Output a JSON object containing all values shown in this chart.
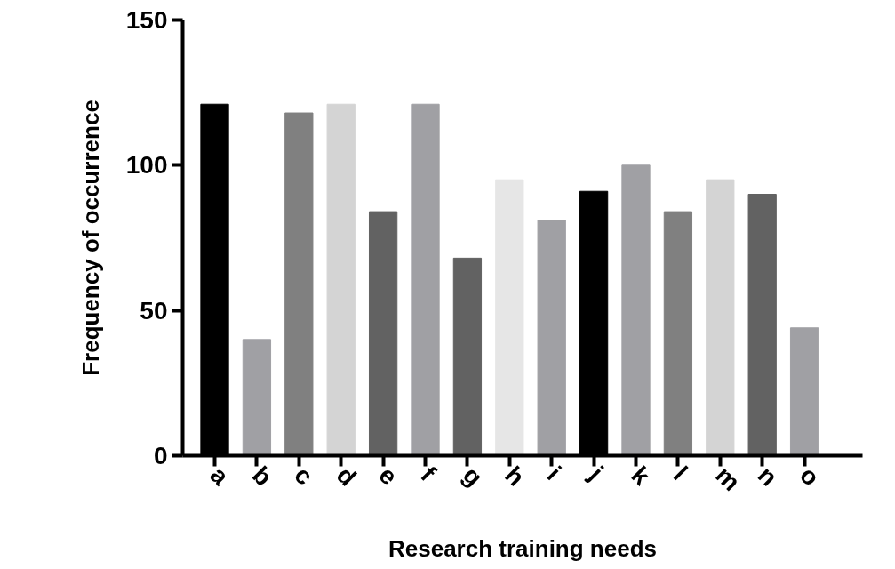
{
  "chart_data": {
    "type": "bar",
    "xlabel": "Research training needs",
    "ylabel": "Frequency of occurrence",
    "categories": [
      "a",
      "b",
      "c",
      "d",
      "e",
      "f",
      "g",
      "h",
      "i",
      "j",
      "k",
      "l",
      "m",
      "n",
      "o"
    ],
    "values": [
      121,
      40,
      118,
      121,
      84,
      121,
      68,
      95,
      81,
      91,
      100,
      84,
      95,
      90,
      44
    ],
    "colors": [
      "#000000",
      "#a0a0a4",
      "#808080",
      "#d4d4d4",
      "#626262",
      "#a0a0a4",
      "#626262",
      "#e6e6e6",
      "#a0a0a4",
      "#000000",
      "#a0a0a4",
      "#808080",
      "#d4d4d4",
      "#626262",
      "#a0a0a4"
    ],
    "ylim": [
      0,
      150
    ],
    "yticks": [
      0,
      50,
      100,
      150
    ],
    "grid": false
  }
}
